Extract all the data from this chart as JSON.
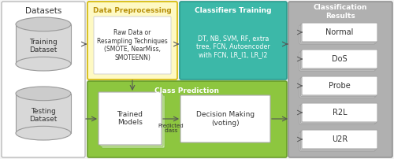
{
  "bg_color": "#f5f5f5",
  "datasets_label": "Datasets",
  "training_label": "Training\nDataset",
  "testing_label": "Testing\nDataset",
  "preprocessing_title": "Data Preprocessing",
  "preprocessing_text": "Raw Data or\nResampling Techniques\n(SMOTE, NearMiss,\nSMOTEENN)",
  "preprocessing_bg": "#fef9c3",
  "preprocessing_border": "#d4b800",
  "classifiers_title": "Classifiers Training",
  "classifiers_text": "DT, NB, SVM, RF, extra\ntree, FCN, Autoencoder\nwith FCN, LR_l1, LR_l2",
  "classifiers_bg": "#3cb8a8",
  "classifiers_border": "#2a9a8c",
  "class_pred_title": "Class Prediction",
  "class_pred_bg": "#8dc63f",
  "class_pred_border": "#6a9e2a",
  "trained_models_label": "Trained\nModels",
  "decision_label": "Decision Making\n(voting)",
  "predicted_class_label": "Predicted\nclass",
  "classification_title": "Classification\nResults",
  "classification_bg": "#b0b0b0",
  "classification_border": "#888888",
  "results": [
    "Normal",
    "DoS",
    "Probe",
    "R2L",
    "U2R"
  ],
  "cylinder_fill": "#d8d8d8",
  "cylinder_edge": "#999999",
  "arrow_color": "#555555",
  "text_dark": "#333333"
}
